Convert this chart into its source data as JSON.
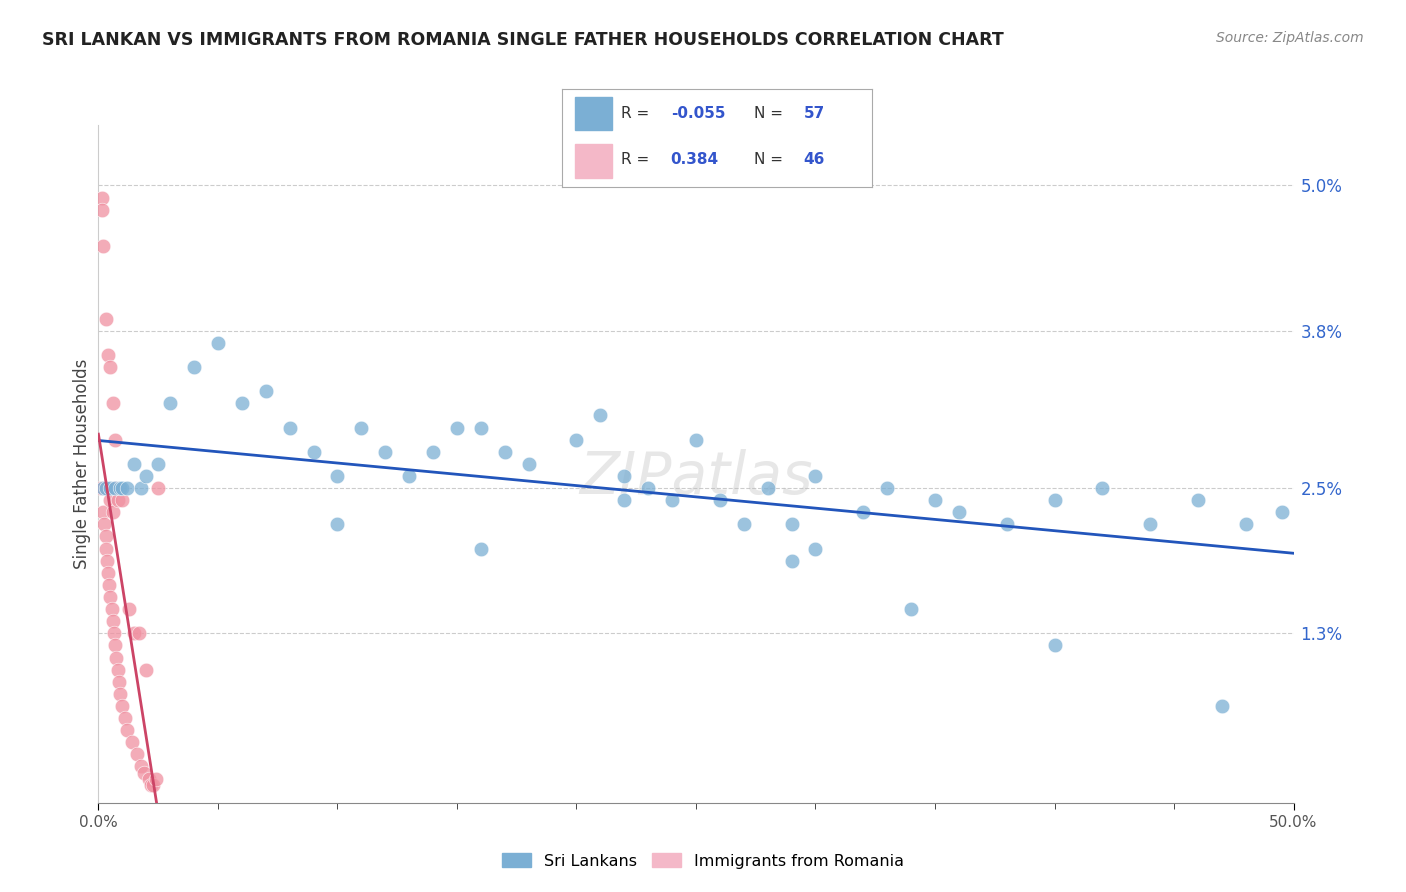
{
  "title": "SRI LANKAN VS IMMIGRANTS FROM ROMANIA SINGLE FATHER HOUSEHOLDS CORRELATION CHART",
  "source": "Source: ZipAtlas.com",
  "ylabel": "Single Father Households",
  "ytick_vals": [
    1.3,
    2.5,
    3.8,
    5.0
  ],
  "ytick_labels": [
    "1.3%",
    "2.5%",
    "3.8%",
    "5.0%"
  ],
  "legend1_color": "#aec6e8",
  "legend2_color": "#f4b8c8",
  "legend1_label": "Sri Lankans",
  "legend2_label": "Immigrants from Romania",
  "R1": "-0.055",
  "N1": "57",
  "R2": "0.384",
  "N2": "46",
  "blue_color": "#7bafd4",
  "pink_color": "#f090a0",
  "blue_line_color": "#2255bb",
  "pink_line_color": "#cc4466",
  "blue_scatter_x": [
    0.2,
    0.3,
    0.5,
    0.7,
    0.9,
    1.0,
    1.2,
    1.5,
    1.8,
    2.0,
    2.5,
    3.0,
    4.0,
    5.0,
    6.0,
    7.0,
    8.0,
    9.0,
    10.0,
    11.0,
    12.0,
    13.0,
    14.0,
    15.0,
    16.0,
    17.0,
    18.0,
    20.0,
    21.0,
    22.0,
    23.0,
    24.0,
    25.0,
    26.0,
    27.0,
    28.0,
    29.0,
    30.0,
    32.0,
    33.0,
    35.0,
    36.0,
    38.0,
    40.0,
    42.0,
    44.0,
    46.0,
    48.0,
    49.5,
    30.0,
    10.0,
    16.0,
    22.0,
    34.0,
    40.0,
    47.0,
    29.0
  ],
  "blue_scatter_y": [
    2.5,
    2.5,
    2.5,
    2.5,
    2.5,
    2.5,
    2.5,
    2.7,
    2.5,
    2.6,
    2.7,
    3.2,
    3.5,
    3.7,
    3.2,
    3.3,
    3.0,
    2.8,
    2.6,
    3.0,
    2.8,
    2.6,
    2.8,
    3.0,
    3.0,
    2.8,
    2.7,
    2.9,
    3.1,
    2.6,
    2.5,
    2.4,
    2.9,
    2.4,
    2.2,
    2.5,
    2.2,
    2.0,
    2.3,
    2.5,
    2.4,
    2.3,
    2.2,
    2.4,
    2.5,
    2.2,
    2.4,
    2.2,
    2.3,
    2.6,
    2.2,
    2.0,
    2.4,
    1.5,
    1.2,
    0.7,
    1.9
  ],
  "pink_scatter_x": [
    0.1,
    0.15,
    0.15,
    0.2,
    0.2,
    0.25,
    0.3,
    0.3,
    0.3,
    0.35,
    0.4,
    0.4,
    0.45,
    0.5,
    0.5,
    0.55,
    0.6,
    0.6,
    0.65,
    0.7,
    0.7,
    0.75,
    0.8,
    0.8,
    0.85,
    0.9,
    1.0,
    1.0,
    1.1,
    1.2,
    1.3,
    1.4,
    1.5,
    1.6,
    1.7,
    1.8,
    1.9,
    2.0,
    2.1,
    2.2,
    2.3,
    2.4,
    2.5,
    0.5,
    0.6,
    0.7
  ],
  "pink_scatter_y": [
    2.5,
    4.9,
    4.8,
    4.5,
    2.3,
    2.2,
    3.9,
    2.1,
    2.0,
    1.9,
    3.6,
    1.8,
    1.7,
    2.4,
    1.6,
    1.5,
    2.3,
    1.4,
    1.3,
    2.5,
    1.2,
    1.1,
    2.4,
    1.0,
    0.9,
    0.8,
    2.4,
    0.7,
    0.6,
    0.5,
    1.5,
    0.4,
    1.3,
    0.3,
    1.3,
    0.2,
    0.15,
    1.0,
    0.1,
    0.05,
    0.05,
    0.1,
    2.5,
    3.5,
    3.2,
    2.9
  ]
}
